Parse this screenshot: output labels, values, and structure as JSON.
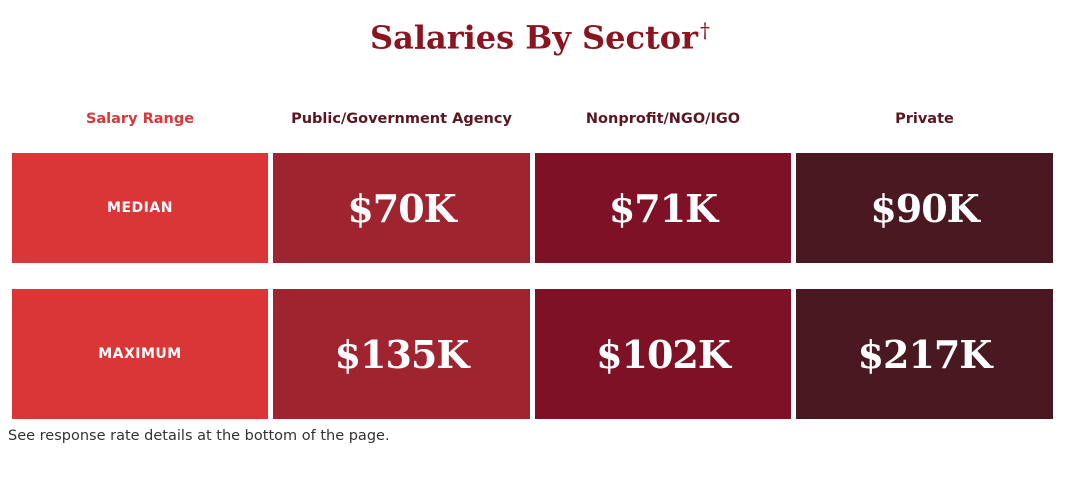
{
  "header": {
    "title": "Salaries By Sector",
    "mark": "†"
  },
  "table": {
    "columns": [
      "Salary Range",
      "Public/Government Agency",
      "Nonprofit/NGO/IGO",
      "Private"
    ],
    "rows": [
      [
        "MEDIAN",
        "$70K",
        "$71K",
        "$90K"
      ],
      [
        "MAXIMUM",
        "$135K",
        "$102K",
        "$217K"
      ]
    ]
  },
  "footnote": "See response rate details at the bottom of the page."
}
